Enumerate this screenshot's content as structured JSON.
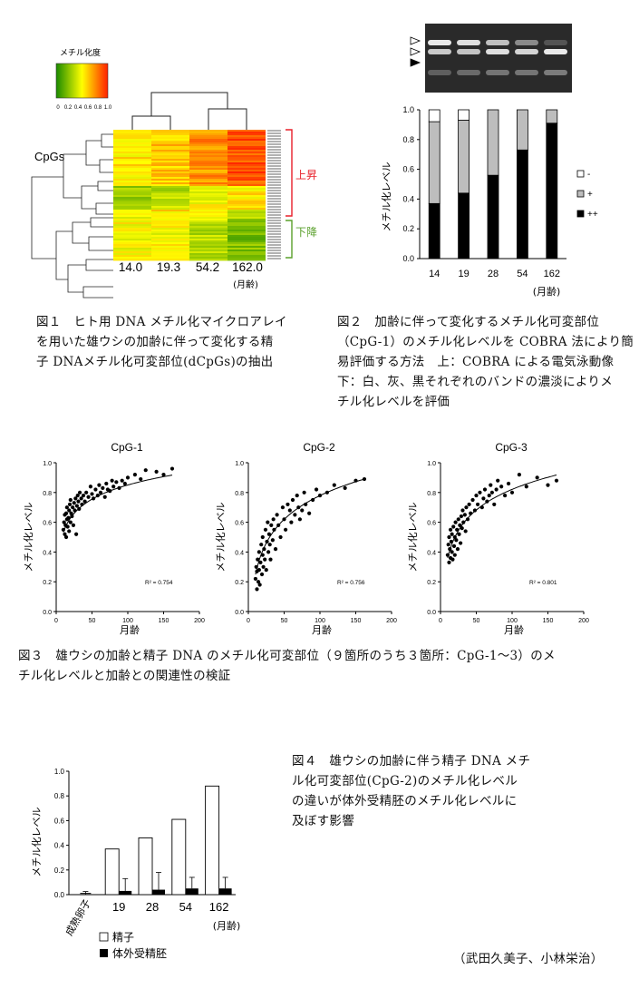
{
  "fig1": {
    "legend_title": "メチル化度",
    "legend_ticks": [
      "0",
      "0.2",
      "0.4",
      "0.6",
      "0.8",
      "1.0"
    ],
    "row_label": "CpGs",
    "up_label": "上昇",
    "down_label": "下降",
    "columns": [
      "14.0",
      "19.3",
      "54.2",
      "162.0"
    ],
    "unit": "(月齢)",
    "caption": [
      "図１　ヒト用 DNA メチル化マイクロアレイ",
      "を用いた雄ウシの加齢に伴って変化する精",
      "子 DNAメチル化可変部位(dCpGs)の抽出"
    ],
    "colors": {
      "low": "#1a8a00",
      "mid": "#ffff00",
      "high": "#ff2000",
      "up": "#e8202a",
      "down": "#5aa02c"
    }
  },
  "fig2": {
    "chart_data": {
      "type": "bar",
      "stacked": true,
      "categories": [
        "14",
        "19",
        "28",
        "54",
        "162"
      ],
      "series": [
        {
          "name": "++",
          "values": [
            0.37,
            0.44,
            0.56,
            0.73,
            0.91
          ]
        },
        {
          "name": "+",
          "values": [
            0.55,
            0.49,
            0.44,
            0.27,
            0.09
          ]
        },
        {
          "name": "-",
          "values": [
            0.08,
            0.07,
            0.0,
            0.0,
            0.0
          ]
        }
      ],
      "ylabel": "メチル化レベル",
      "xunit": "(月齢)",
      "ylim": [
        0,
        1.0
      ],
      "yticks": [
        "0.0",
        "0.2",
        "0.4",
        "0.6",
        "0.8",
        "1.0"
      ],
      "legend_placement": "right"
    },
    "legend": [
      {
        "label": "-",
        "color": "#ffffff"
      },
      {
        "label": "+",
        "color": "#bdbdbd"
      },
      {
        "label": "++",
        "color": "#000000"
      }
    ],
    "caption": [
      "図２　加齢に伴って変化するメチル化可変部位",
      "（CpG-1）のメチル化レベルを COBRA 法により簡",
      "易評価する方法　上：COBRA による電気泳動像",
      "下：白、灰、黒それぞれのバンドの濃淡によりメ",
      "チル化レベルを評価"
    ]
  },
  "fig3": {
    "chart_data": [
      {
        "type": "scatter",
        "title": "CpG-1",
        "xlabel": "月齢",
        "ylabel": "メチル化レベル",
        "xlim": [
          0,
          200
        ],
        "ylim": [
          0,
          1.0
        ],
        "r2": "R² = 0.754",
        "xticks": [
          "0",
          "50",
          "100",
          "150",
          "200"
        ],
        "yticks": [
          "0.0",
          "0.2",
          "0.4",
          "0.6",
          "0.8",
          "1.0"
        ],
        "x": [
          10,
          11,
          12,
          12,
          13,
          14,
          14,
          15,
          15,
          16,
          17,
          18,
          18,
          19,
          20,
          20,
          21,
          22,
          23,
          24,
          25,
          26,
          27,
          28,
          29,
          30,
          31,
          32,
          33,
          35,
          36,
          38,
          40,
          42,
          45,
          48,
          50,
          52,
          55,
          58,
          60,
          62,
          65,
          68,
          70,
          72,
          75,
          78,
          80,
          84,
          88,
          92,
          96,
          100,
          110,
          118,
          125,
          140,
          150,
          162
        ],
        "y": [
          0.55,
          0.6,
          0.52,
          0.65,
          0.58,
          0.66,
          0.5,
          0.62,
          0.7,
          0.57,
          0.63,
          0.68,
          0.54,
          0.72,
          0.6,
          0.75,
          0.66,
          0.64,
          0.7,
          0.58,
          0.73,
          0.68,
          0.76,
          0.52,
          0.71,
          0.78,
          0.74,
          0.69,
          0.8,
          0.76,
          0.72,
          0.78,
          0.74,
          0.8,
          0.77,
          0.84,
          0.79,
          0.76,
          0.82,
          0.78,
          0.85,
          0.8,
          0.83,
          0.77,
          0.86,
          0.82,
          0.81,
          0.88,
          0.84,
          0.87,
          0.83,
          0.88,
          0.86,
          0.9,
          0.92,
          0.89,
          0.95,
          0.94,
          0.92,
          0.96
        ],
        "fit": {
          "a": 0.215,
          "b": 0.138
        }
      },
      {
        "type": "scatter",
        "title": "CpG-2",
        "xlabel": "月齢",
        "ylabel": "メチル化レベル",
        "xlim": [
          0,
          200
        ],
        "ylim": [
          0,
          1.0
        ],
        "r2": "R² = 0.756",
        "xticks": [
          "0",
          "50",
          "100",
          "150",
          "200"
        ],
        "yticks": [
          "0.0",
          "0.2",
          "0.4",
          "0.6",
          "0.8",
          "1.0"
        ],
        "x": [
          10,
          11,
          12,
          12,
          13,
          14,
          15,
          15,
          16,
          17,
          18,
          19,
          20,
          20,
          21,
          22,
          23,
          24,
          25,
          26,
          27,
          28,
          29,
          30,
          31,
          32,
          34,
          35,
          36,
          38,
          40,
          42,
          45,
          48,
          50,
          52,
          55,
          58,
          60,
          62,
          65,
          68,
          70,
          72,
          75,
          78,
          80,
          85,
          90,
          95,
          100,
          110,
          120,
          135,
          150,
          162
        ],
        "y": [
          0.22,
          0.3,
          0.15,
          0.27,
          0.35,
          0.2,
          0.4,
          0.28,
          0.18,
          0.33,
          0.45,
          0.25,
          0.38,
          0.5,
          0.3,
          0.42,
          0.35,
          0.55,
          0.28,
          0.47,
          0.6,
          0.4,
          0.52,
          0.45,
          0.35,
          0.58,
          0.48,
          0.62,
          0.55,
          0.42,
          0.65,
          0.58,
          0.5,
          0.7,
          0.62,
          0.55,
          0.72,
          0.68,
          0.6,
          0.75,
          0.65,
          0.78,
          0.7,
          0.62,
          0.68,
          0.8,
          0.72,
          0.66,
          0.75,
          0.82,
          0.78,
          0.8,
          0.85,
          0.83,
          0.88,
          0.89
        ],
        "fit": {
          "a": -0.28,
          "b": 0.23
        }
      },
      {
        "type": "scatter",
        "title": "CpG-3",
        "xlabel": "月齢",
        "ylabel": "メチル化レベル",
        "xlim": [
          0,
          200
        ],
        "ylim": [
          0,
          1.0
        ],
        "r2": "R² = 0.801",
        "xticks": [
          "0",
          "50",
          "100",
          "150",
          "200"
        ],
        "yticks": [
          "0.0",
          "0.2",
          "0.4",
          "0.6",
          "0.8",
          "1.0"
        ],
        "x": [
          10,
          11,
          12,
          12,
          13,
          14,
          14,
          15,
          16,
          16,
          17,
          18,
          19,
          20,
          20,
          21,
          22,
          23,
          24,
          25,
          26,
          27,
          28,
          29,
          30,
          31,
          32,
          34,
          35,
          36,
          38,
          40,
          42,
          45,
          48,
          50,
          52,
          55,
          58,
          60,
          62,
          65,
          68,
          70,
          72,
          75,
          78,
          80,
          85,
          90,
          95,
          100,
          110,
          120,
          135,
          150,
          162
        ],
        "y": [
          0.38,
          0.45,
          0.33,
          0.5,
          0.42,
          0.36,
          0.55,
          0.47,
          0.4,
          0.52,
          0.35,
          0.57,
          0.44,
          0.5,
          0.38,
          0.6,
          0.48,
          0.55,
          0.42,
          0.62,
          0.52,
          0.58,
          0.46,
          0.64,
          0.56,
          0.68,
          0.6,
          0.65,
          0.54,
          0.7,
          0.62,
          0.72,
          0.66,
          0.75,
          0.68,
          0.78,
          0.72,
          0.8,
          0.7,
          0.76,
          0.82,
          0.74,
          0.78,
          0.85,
          0.8,
          0.72,
          0.82,
          0.88,
          0.84,
          0.78,
          0.86,
          0.8,
          0.92,
          0.84,
          0.9,
          0.85,
          0.88
        ],
        "fit": {
          "a": -0.1,
          "b": 0.2
        }
      }
    ],
    "caption": [
      "図３　雄ウシの加齢と精子 DNA のメチル化可変部位（９箇所のうち３箇所：CpG-1～3）のメ",
      "チル化レベルと加齢との関連性の検証"
    ]
  },
  "fig4": {
    "chart_data": {
      "type": "bar",
      "categories": [
        "成熟卵子",
        "19",
        "28",
        "54",
        "162"
      ],
      "series": [
        {
          "name": "精子",
          "values": [
            0.01,
            0.37,
            0.46,
            0.61,
            0.88
          ]
        },
        {
          "name": "体外受精胚",
          "values": [
            null,
            0.03,
            0.04,
            0.05,
            0.05
          ],
          "errors": [
            null,
            0.1,
            0.14,
            0.09,
            0.09
          ]
        }
      ],
      "ylabel": "メチル化レベル",
      "xunit": "(月齢)",
      "ylim": [
        0,
        1.0
      ],
      "yticks": [
        "0.0",
        "0.2",
        "0.4",
        "0.6",
        "0.8",
        "1.0"
      ],
      "legend_placement": "bottom-left"
    },
    "caption": [
      "図４　雄ウシの加齢に伴う精子 DNA メチ",
      "ル化可変部位(CpG-2)のメチル化レベル",
      "の違いが体外受精胚のメチル化レベルに",
      "及ぼす影響"
    ]
  },
  "authors": "（武田久美子、小林栄治）"
}
